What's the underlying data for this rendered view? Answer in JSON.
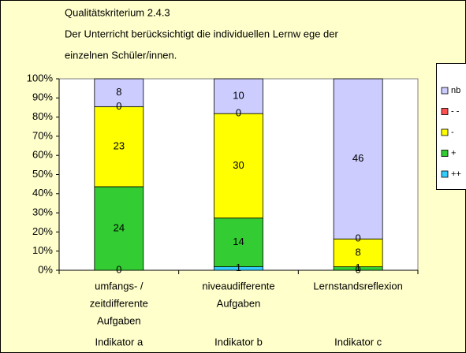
{
  "chart_data": {
    "type": "bar",
    "stacked": "percent",
    "title_lines": [
      "Qualitätskriterium 2.4.3",
      "Der Unterricht berücksichtigt die individuellen Lernw ege der",
      "einzelnen Schüler/innen."
    ],
    "categories": [
      [
        "umfangs- /",
        "zeitdifferente",
        "Aufgaben"
      ],
      [
        "niveaudifferente",
        "Aufgaben"
      ],
      [
        "Lernstandsreflexion"
      ]
    ],
    "group_labels": [
      "Indikator a",
      "Indikator b",
      "Indikator c"
    ],
    "series": [
      {
        "name": "++",
        "color": "#33ccff",
        "values": [
          0,
          1,
          0
        ]
      },
      {
        "name": "+",
        "color": "#33cc33",
        "values": [
          24,
          14,
          1
        ]
      },
      {
        "name": "-",
        "color": "#ffff00",
        "values": [
          23,
          30,
          8
        ]
      },
      {
        "name": "- -",
        "color": "#ff5050",
        "values": [
          0,
          0,
          0
        ]
      },
      {
        "name": "nb",
        "color": "#ccccff",
        "values": [
          8,
          10,
          46
        ]
      }
    ],
    "ylim": [
      0,
      100
    ],
    "yticks": [
      {
        "value": 0,
        "label": "0%"
      },
      {
        "value": 10,
        "label": "10%"
      },
      {
        "value": 20,
        "label": "20%"
      },
      {
        "value": 30,
        "label": "30%"
      },
      {
        "value": 40,
        "label": "40%"
      },
      {
        "value": 50,
        "label": "50%"
      },
      {
        "value": 60,
        "label": "60%"
      },
      {
        "value": 70,
        "label": "70%"
      },
      {
        "value": 80,
        "label": "80%"
      },
      {
        "value": 90,
        "label": "90%"
      },
      {
        "value": 100,
        "label": "100%"
      }
    ],
    "legend": "right"
  }
}
